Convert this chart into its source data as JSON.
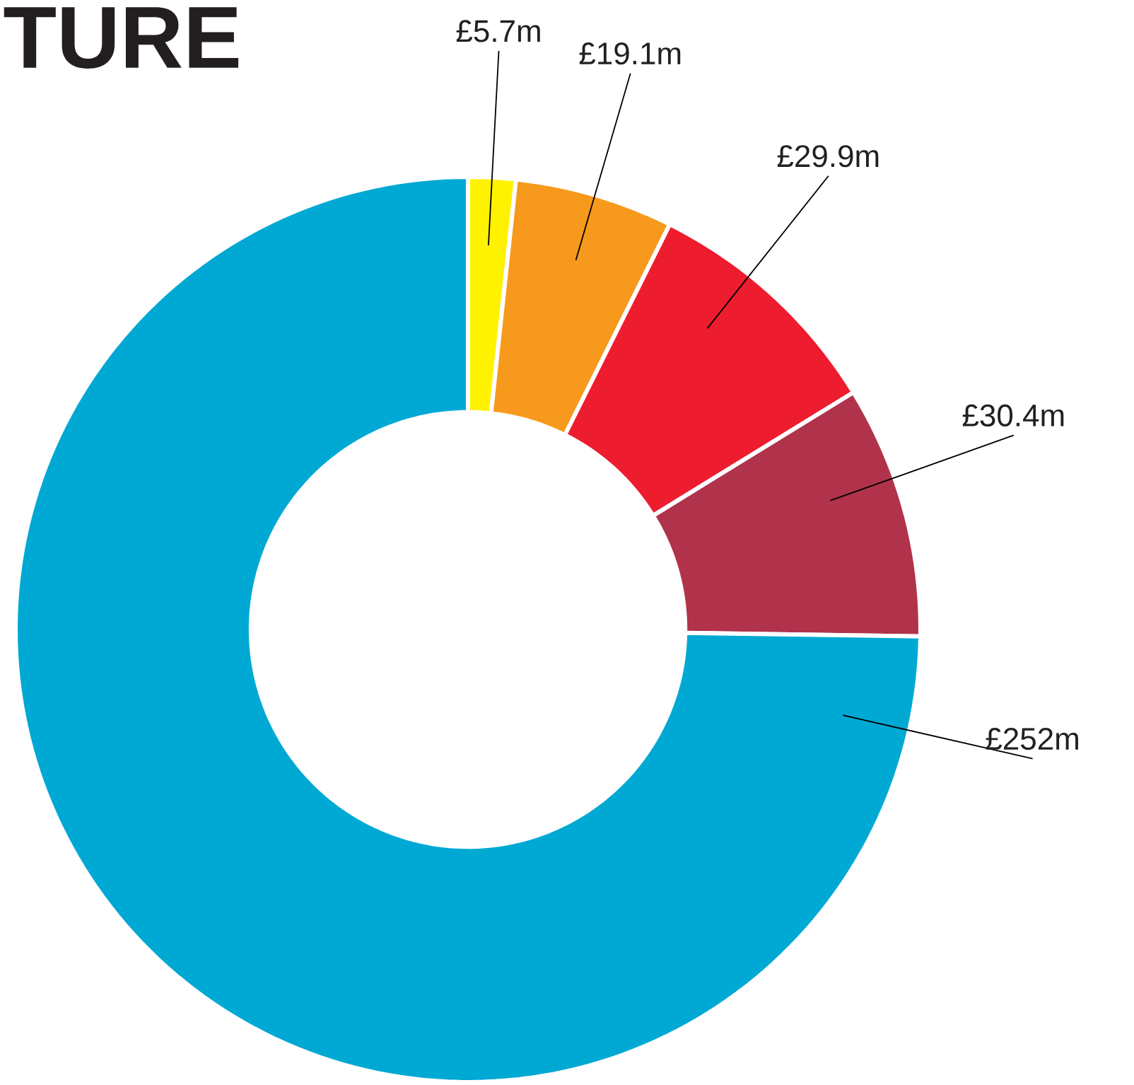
{
  "chart_data": {
    "type": "donut",
    "title": "TURE",
    "categories": [
      null,
      null,
      null,
      null,
      null
    ],
    "values": [
      5.7,
      19.1,
      29.9,
      30.4,
      252
    ],
    "colors": [
      "#fff200",
      "#f7991c",
      "#ed1c2e",
      "#b0334b",
      "#00a9d4"
    ],
    "value_labels": [
      "£5.7m",
      "£19.1m",
      "£29.9m",
      "£30.4m",
      "£252m"
    ]
  }
}
